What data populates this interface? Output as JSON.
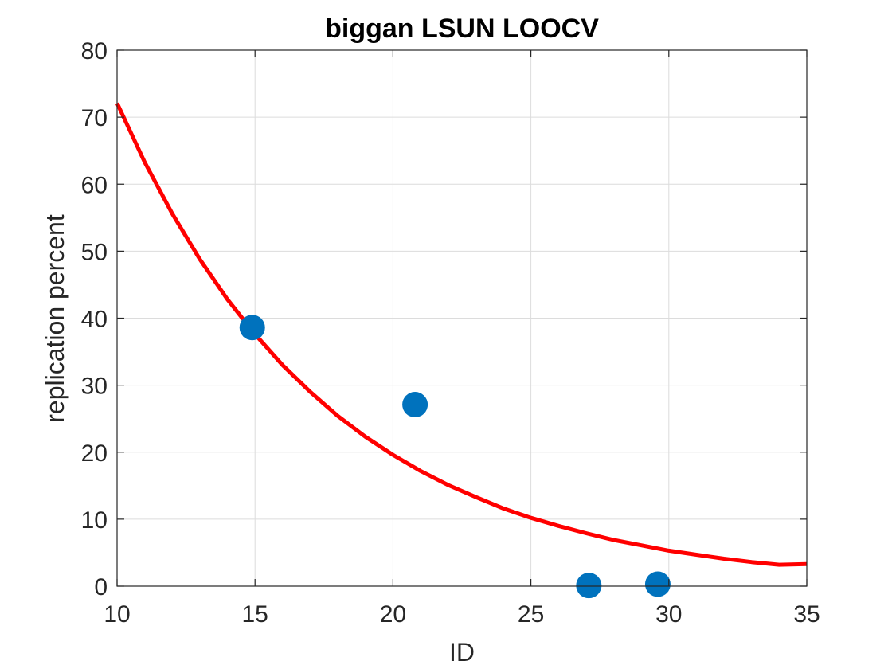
{
  "chart_data": {
    "type": "scatter",
    "title": "biggan LSUN LOOCV",
    "xlabel": "ID",
    "ylabel": "replication percent",
    "xlim": [
      10,
      35
    ],
    "ylim": [
      0,
      80
    ],
    "xticks": [
      10,
      15,
      20,
      25,
      30,
      35
    ],
    "yticks": [
      0,
      10,
      20,
      30,
      40,
      50,
      60,
      70,
      80
    ],
    "grid": true,
    "series": [
      {
        "type": "scatter",
        "color": "#0072BD",
        "x": [
          14.9,
          20.8,
          27.1,
          29.6
        ],
        "y": [
          38.6,
          27.1,
          0.1,
          0.3
        ]
      },
      {
        "type": "line",
        "color": "#FF0000",
        "x": [
          10,
          11,
          12,
          13,
          14,
          15,
          16,
          17,
          18,
          19,
          20,
          21,
          22,
          23,
          24,
          25,
          26,
          27,
          28,
          29,
          30,
          31,
          32,
          33,
          34,
          35
        ],
        "y": [
          72.1,
          63.3,
          55.6,
          48.8,
          42.8,
          37.6,
          33.0,
          29.0,
          25.4,
          22.3,
          19.6,
          17.2,
          15.1,
          13.3,
          11.6,
          10.2,
          9.0,
          7.9,
          6.9,
          6.1,
          5.3,
          4.7,
          4.1,
          3.6,
          3.2,
          3.3
        ]
      }
    ]
  }
}
